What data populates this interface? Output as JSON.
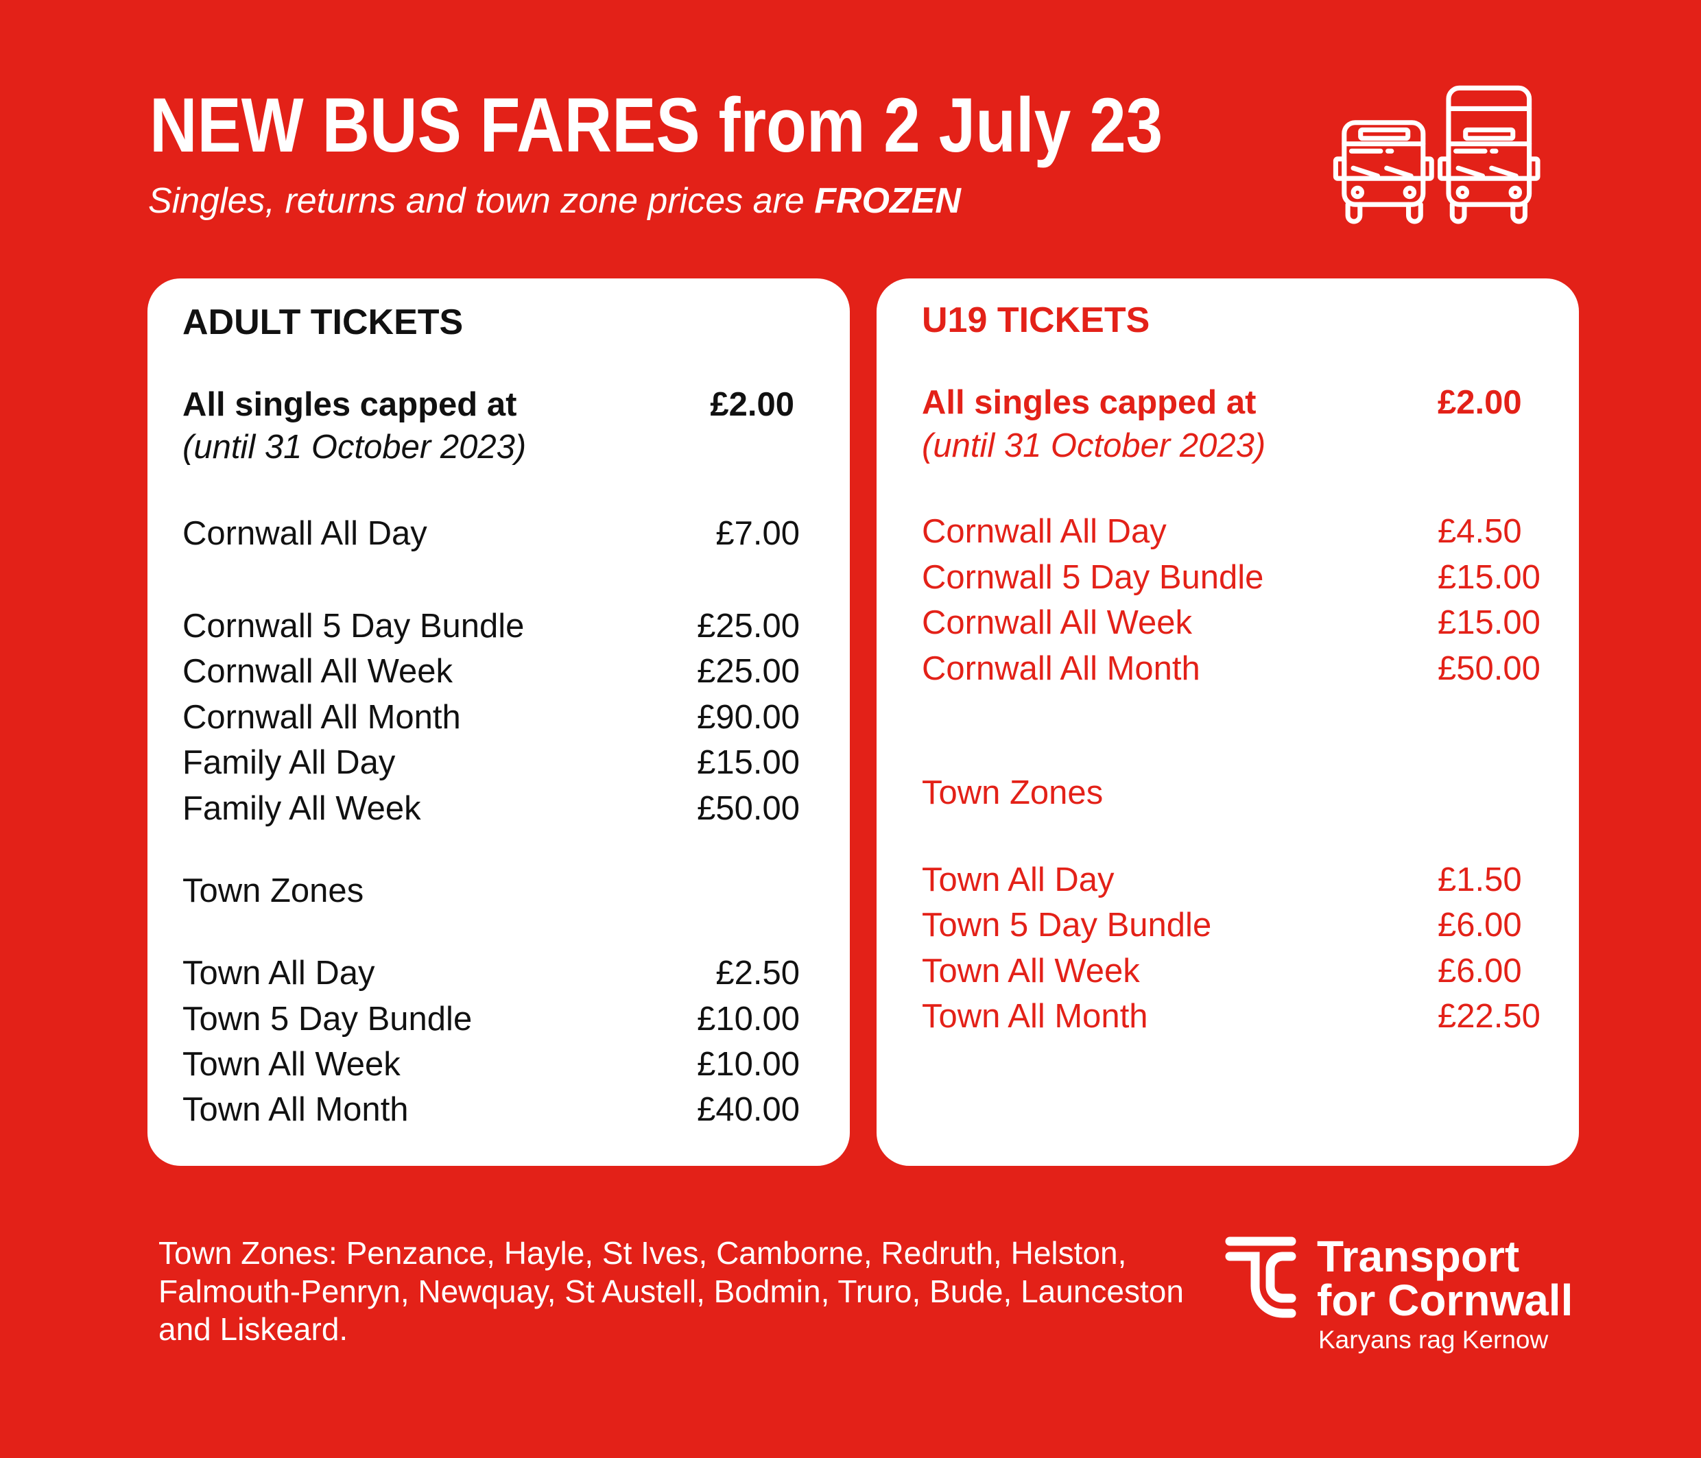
{
  "header": {
    "title": "NEW BUS FARES  from 2 July 23",
    "subtitle_prefix": "Singles, returns and town zone prices are ",
    "subtitle_emphasis": "FROZEN",
    "icon": "two-buses-icon"
  },
  "adult": {
    "heading": "ADULT TICKETS",
    "singles_label": "All singles capped at",
    "singles_price": "£2.00",
    "singles_note": "(until 31 October 2023)",
    "fares": [
      {
        "label": "Cornwall All Day",
        "price": "£7.00"
      },
      {
        "label": "Cornwall 5 Day Bundle",
        "price": "£25.00"
      },
      {
        "label": "Cornwall All Week",
        "price": "£25.00"
      },
      {
        "label": "Cornwall All Month",
        "price": "£90.00"
      },
      {
        "label": "Family All Day",
        "price": "£15.00"
      },
      {
        "label": "Family All Week",
        "price": "£50.00"
      }
    ],
    "town_heading": "Town Zones",
    "town_fares": [
      {
        "label": "Town All Day",
        "price": "£2.50"
      },
      {
        "label": "Town 5 Day Bundle",
        "price": "£10.00"
      },
      {
        "label": "Town All Week",
        "price": "£10.00"
      },
      {
        "label": "Town All Month",
        "price": "£40.00"
      }
    ]
  },
  "u19": {
    "heading": "U19 TICKETS",
    "singles_label": "All singles capped at",
    "singles_price": "£2.00",
    "singles_note": "(until 31 October 2023)",
    "fares": [
      {
        "label": "Cornwall All Day",
        "price": "£4.50"
      },
      {
        "label": "Cornwall 5 Day Bundle",
        "price": "£15.00"
      },
      {
        "label": "Cornwall All Week",
        "price": "£15.00"
      },
      {
        "label": "Cornwall All Month",
        "price": "£50.00"
      }
    ],
    "town_heading": "Town Zones",
    "town_fares": [
      {
        "label": "Town All Day",
        "price": "£1.50"
      },
      {
        "label": "Town 5 Day Bundle",
        "price": "£6.00"
      },
      {
        "label": "Town All Week",
        "price": "£6.00"
      },
      {
        "label": "Town All Month",
        "price": "£22.50"
      }
    ]
  },
  "footer": {
    "town_zones_note": "Town Zones: Penzance, Hayle, St Ives, Camborne, Redruth, Helston, Falmouth-Penryn, Newquay, St Austell, Bodmin, Truro, Bude, Launceston and Liskeard.",
    "logo_line1": "Transport",
    "logo_line2": "for Cornwall",
    "logo_tagline": "Karyans rag Kernow"
  },
  "colors": {
    "brand_red": "#e32118",
    "card": "#ffffff",
    "text_dark": "#111111"
  }
}
